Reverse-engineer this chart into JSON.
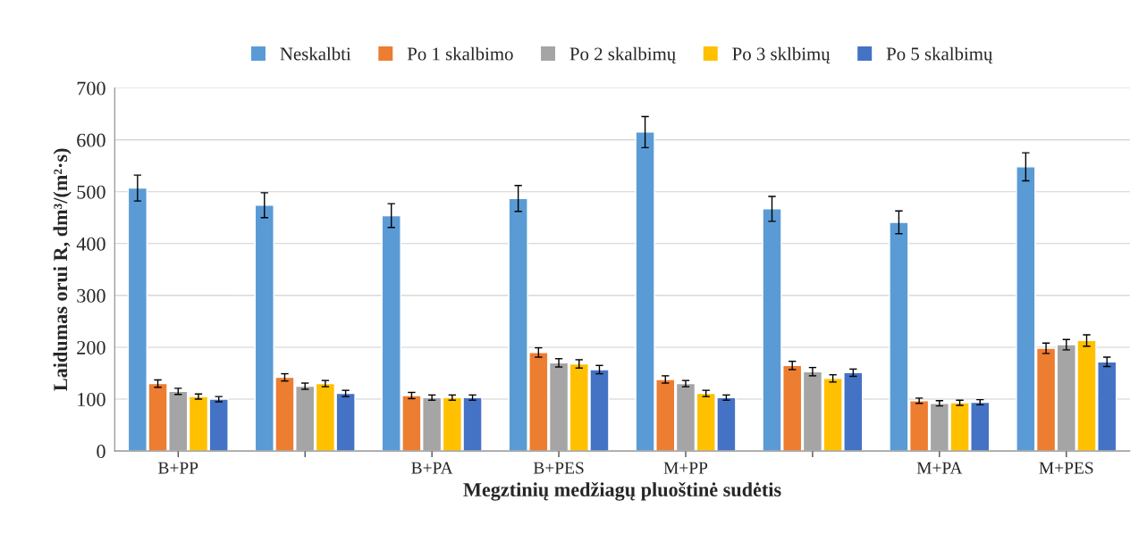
{
  "chart_data": {
    "type": "bar",
    "xlabel": "Megztinių medžiagų pluoštinė sudėtis",
    "ylabel": "Laidumas orui R, dm³/(m²·s)",
    "categories": [
      "B+PP",
      null,
      "B+PA",
      "B+PES",
      "M+PP",
      null,
      "M+PA",
      "M+PES"
    ],
    "series": [
      {
        "name": "Neskalbti",
        "color": "#5b9bd5",
        "values": [
          507,
          474,
          454,
          487,
          615,
          467,
          441,
          548
        ],
        "errors": [
          25,
          24,
          23,
          25,
          30,
          24,
          22,
          27
        ]
      },
      {
        "name": "Po 1 skalbimo",
        "color": "#ed7d31",
        "values": [
          130,
          142,
          107,
          190,
          138,
          165,
          97,
          198
        ],
        "errors": [
          7,
          7,
          6,
          9,
          7,
          8,
          5,
          10
        ]
      },
      {
        "name": "Po 2 skalbimų",
        "color": "#a5a5a5",
        "values": [
          115,
          125,
          103,
          170,
          130,
          153,
          92,
          205
        ],
        "errors": [
          6,
          6,
          5,
          8,
          6,
          8,
          5,
          10
        ]
      },
      {
        "name": "Po 3 sklbimų",
        "color": "#ffc000",
        "values": [
          105,
          130,
          103,
          168,
          111,
          140,
          93,
          213
        ],
        "errors": [
          5,
          6,
          5,
          8,
          6,
          7,
          5,
          11
        ]
      },
      {
        "name": "Po 5 skalbimų",
        "color": "#4472c4",
        "values": [
          100,
          111,
          103,
          157,
          103,
          151,
          94,
          172
        ],
        "errors": [
          5,
          6,
          5,
          8,
          5,
          7,
          5,
          9
        ]
      }
    ],
    "ylim": [
      0,
      700
    ],
    "yticks": [
      0,
      100,
      200,
      300,
      400,
      500,
      600,
      700
    ],
    "grid": "y",
    "legend": "top"
  }
}
